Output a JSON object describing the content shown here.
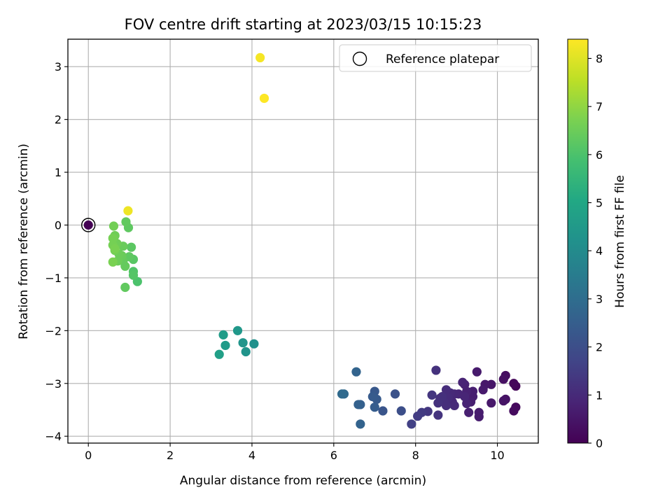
{
  "chart_data": {
    "type": "scatter",
    "title": "FOV centre drift starting at 2023/03/15 10:15:23",
    "xlabel": "Angular distance from reference (arcmin)",
    "ylabel": "Rotation from reference (arcmin)",
    "xlim": [
      -0.5,
      11.0
    ],
    "ylim": [
      -4.13,
      3.52
    ],
    "x_ticks": [
      0,
      2,
      4,
      6,
      8,
      10
    ],
    "y_ticks": [
      -4,
      -3,
      -2,
      -1,
      0,
      1,
      2,
      3
    ],
    "grid": true,
    "legend": {
      "placement": "top-right",
      "entries": [
        "Reference platepar"
      ]
    },
    "reference_point": {
      "x": 0,
      "y": 0
    },
    "colorbar": {
      "label": "Hours from first FF file",
      "colormap": "viridis",
      "range": [
        0,
        8.4
      ],
      "ticks": [
        0,
        1,
        2,
        3,
        4,
        5,
        6,
        7,
        8
      ]
    },
    "series": [
      {
        "points": [
          {
            "x": 0.0,
            "y": 0.0,
            "c": 0.0
          },
          {
            "x": 10.45,
            "y": -3.05,
            "c": 0.1
          },
          {
            "x": 10.4,
            "y": -3.0,
            "c": 0.15
          },
          {
            "x": 10.45,
            "y": -3.45,
            "c": 0.2
          },
          {
            "x": 10.4,
            "y": -3.52,
            "c": 0.25
          },
          {
            "x": 10.2,
            "y": -2.85,
            "c": 0.3
          },
          {
            "x": 10.15,
            "y": -2.92,
            "c": 0.35
          },
          {
            "x": 10.2,
            "y": -3.3,
            "c": 0.4
          },
          {
            "x": 10.15,
            "y": -3.33,
            "c": 0.45
          },
          {
            "x": 9.85,
            "y": -3.02,
            "c": 0.5
          },
          {
            "x": 9.85,
            "y": -3.37,
            "c": 0.55
          },
          {
            "x": 9.7,
            "y": -3.02,
            "c": 0.55
          },
          {
            "x": 9.65,
            "y": -3.12,
            "c": 0.6
          },
          {
            "x": 9.5,
            "y": -2.78,
            "c": 0.6
          },
          {
            "x": 9.55,
            "y": -3.55,
            "c": 0.65
          },
          {
            "x": 9.55,
            "y": -3.63,
            "c": 0.65
          },
          {
            "x": 9.4,
            "y": -3.15,
            "c": 0.7
          },
          {
            "x": 9.4,
            "y": -3.25,
            "c": 0.7
          },
          {
            "x": 9.35,
            "y": -3.35,
            "c": 0.75
          },
          {
            "x": 9.3,
            "y": -3.55,
            "c": 0.75
          },
          {
            "x": 9.25,
            "y": -3.15,
            "c": 0.8
          },
          {
            "x": 9.2,
            "y": -3.02,
            "c": 0.8
          },
          {
            "x": 9.15,
            "y": -2.98,
            "c": 0.85
          },
          {
            "x": 9.25,
            "y": -3.38,
            "c": 0.85
          },
          {
            "x": 9.2,
            "y": -3.25,
            "c": 0.9
          },
          {
            "x": 9.05,
            "y": -3.2,
            "c": 0.9
          },
          {
            "x": 8.95,
            "y": -3.2,
            "c": 0.95
          },
          {
            "x": 8.9,
            "y": -3.35,
            "c": 0.95
          },
          {
            "x": 8.95,
            "y": -3.42,
            "c": 1.0
          },
          {
            "x": 8.85,
            "y": -3.18,
            "c": 1.0
          },
          {
            "x": 8.8,
            "y": -3.27,
            "c": 1.05
          },
          {
            "x": 8.75,
            "y": -3.12,
            "c": 1.05
          },
          {
            "x": 8.75,
            "y": -3.42,
            "c": 1.1
          },
          {
            "x": 8.7,
            "y": -3.35,
            "c": 1.1
          },
          {
            "x": 8.65,
            "y": -3.25,
            "c": 1.15
          },
          {
            "x": 8.6,
            "y": -3.28,
            "c": 1.15
          },
          {
            "x": 8.55,
            "y": -3.37,
            "c": 1.2
          },
          {
            "x": 8.5,
            "y": -2.75,
            "c": 1.2
          },
          {
            "x": 8.55,
            "y": -3.6,
            "c": 1.25
          },
          {
            "x": 8.4,
            "y": -3.22,
            "c": 1.3
          },
          {
            "x": 8.3,
            "y": -3.53,
            "c": 1.35
          },
          {
            "x": 8.15,
            "y": -3.55,
            "c": 1.45
          },
          {
            "x": 8.05,
            "y": -3.62,
            "c": 1.5
          },
          {
            "x": 7.9,
            "y": -3.77,
            "c": 1.6
          },
          {
            "x": 7.65,
            "y": -3.52,
            "c": 2.0
          },
          {
            "x": 7.5,
            "y": -3.2,
            "c": 2.1
          },
          {
            "x": 7.2,
            "y": -3.52,
            "c": 2.2
          },
          {
            "x": 7.0,
            "y": -3.15,
            "c": 2.3
          },
          {
            "x": 7.05,
            "y": -3.3,
            "c": 2.35
          },
          {
            "x": 6.95,
            "y": -3.25,
            "c": 2.4
          },
          {
            "x": 7.0,
            "y": -3.45,
            "c": 2.45
          },
          {
            "x": 6.65,
            "y": -3.4,
            "c": 2.55
          },
          {
            "x": 6.6,
            "y": -3.4,
            "c": 2.6
          },
          {
            "x": 6.65,
            "y": -3.77,
            "c": 2.65
          },
          {
            "x": 6.55,
            "y": -2.78,
            "c": 2.7
          },
          {
            "x": 6.25,
            "y": -3.2,
            "c": 2.85
          },
          {
            "x": 6.2,
            "y": -3.2,
            "c": 2.9
          },
          {
            "x": 4.05,
            "y": -2.25,
            "c": 4.2
          },
          {
            "x": 3.85,
            "y": -2.4,
            "c": 4.3
          },
          {
            "x": 3.78,
            "y": -2.23,
            "c": 4.35
          },
          {
            "x": 3.65,
            "y": -2.0,
            "c": 4.45
          },
          {
            "x": 3.35,
            "y": -2.28,
            "c": 4.55
          },
          {
            "x": 3.3,
            "y": -2.08,
            "c": 4.6
          },
          {
            "x": 3.2,
            "y": -2.45,
            "c": 4.7
          },
          {
            "x": 1.2,
            "y": -1.07,
            "c": 6.0
          },
          {
            "x": 1.1,
            "y": -0.88,
            "c": 6.1
          },
          {
            "x": 1.1,
            "y": -0.95,
            "c": 6.15
          },
          {
            "x": 1.1,
            "y": -0.65,
            "c": 6.2
          },
          {
            "x": 1.05,
            "y": -0.42,
            "c": 6.25
          },
          {
            "x": 1.0,
            "y": -0.6,
            "c": 6.3
          },
          {
            "x": 0.98,
            "y": -0.05,
            "c": 6.3
          },
          {
            "x": 0.92,
            "y": 0.06,
            "c": 6.35
          },
          {
            "x": 0.9,
            "y": -1.18,
            "c": 6.35
          },
          {
            "x": 0.9,
            "y": -0.78,
            "c": 6.4
          },
          {
            "x": 0.85,
            "y": -0.68,
            "c": 6.4
          },
          {
            "x": 0.85,
            "y": -0.4,
            "c": 6.45
          },
          {
            "x": 0.82,
            "y": -0.58,
            "c": 6.45
          },
          {
            "x": 0.75,
            "y": -0.55,
            "c": 6.5
          },
          {
            "x": 0.72,
            "y": -0.68,
            "c": 6.5
          },
          {
            "x": 0.7,
            "y": -0.35,
            "c": 6.55
          },
          {
            "x": 0.65,
            "y": -0.2,
            "c": 6.55
          },
          {
            "x": 0.65,
            "y": -0.48,
            "c": 6.6
          },
          {
            "x": 0.62,
            "y": -0.02,
            "c": 6.6
          },
          {
            "x": 0.6,
            "y": -0.25,
            "c": 6.65
          },
          {
            "x": 0.6,
            "y": -0.38,
            "c": 6.65
          },
          {
            "x": 0.6,
            "y": -0.7,
            "c": 6.7
          },
          {
            "x": 0.65,
            "y": -0.45,
            "c": 6.7
          },
          {
            "x": 0.97,
            "y": 0.27,
            "c": 8.2
          },
          {
            "x": 4.2,
            "y": 3.17,
            "c": 8.3
          },
          {
            "x": 4.3,
            "y": 2.4,
            "c": 8.4
          }
        ]
      }
    ]
  }
}
